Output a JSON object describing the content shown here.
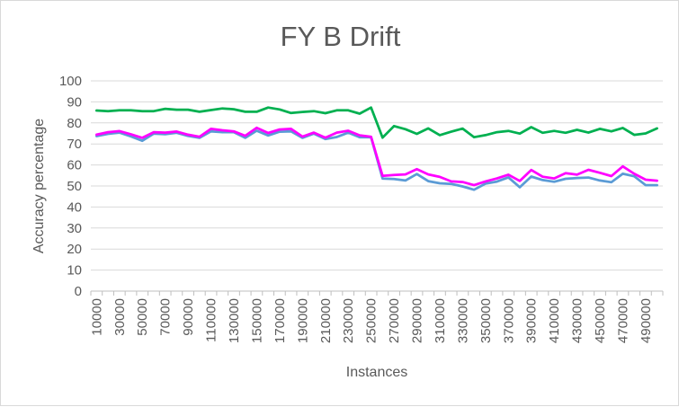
{
  "chart_data": {
    "type": "line",
    "title": "FY B Drift",
    "xlabel": "Instances",
    "ylabel": "Accuracy percentage",
    "ylim": [
      0,
      100
    ],
    "yticks": [
      0,
      10,
      20,
      30,
      40,
      50,
      60,
      70,
      80,
      90,
      100
    ],
    "xtick_labels": [
      "10000",
      "30000",
      "50000",
      "70000",
      "90000",
      "110000",
      "130000",
      "150000",
      "170000",
      "190000",
      "210000",
      "230000",
      "250000",
      "270000",
      "290000",
      "310000",
      "330000",
      "350000",
      "370000",
      "390000",
      "410000",
      "430000",
      "450000",
      "470000",
      "490000"
    ],
    "x": [
      10000,
      20000,
      30000,
      40000,
      50000,
      60000,
      70000,
      80000,
      90000,
      100000,
      110000,
      120000,
      130000,
      140000,
      150000,
      160000,
      170000,
      180000,
      190000,
      200000,
      210000,
      220000,
      230000,
      240000,
      250000,
      260000,
      270000,
      280000,
      290000,
      300000,
      310000,
      320000,
      330000,
      340000,
      350000,
      360000,
      370000,
      380000,
      390000,
      400000,
      410000,
      420000,
      430000,
      440000,
      450000,
      460000,
      470000,
      480000,
      490000,
      500000
    ],
    "grid": true,
    "legend": "none",
    "series": [
      {
        "color": "#00b050",
        "values": [
          85.9,
          85.6,
          86.0,
          86.0,
          85.6,
          85.6,
          86.7,
          86.3,
          86.3,
          85.3,
          86.1,
          86.9,
          86.5,
          85.3,
          85.3,
          87.3,
          86.4,
          84.7,
          85.2,
          85.6,
          84.6,
          86.0,
          86.0,
          84.4,
          87.3,
          73.0,
          78.5,
          77.0,
          74.8,
          77.4,
          74.2,
          75.8,
          77.3,
          73.2,
          74.2,
          75.6,
          76.2,
          74.9,
          78.0,
          75.3,
          76.2,
          75.3,
          76.7,
          75.4,
          77.2,
          76.0,
          77.6,
          74.3,
          75.0,
          77.4
        ]
      },
      {
        "color": "#5b9bd5",
        "values": [
          73.7,
          74.8,
          75.4,
          73.6,
          71.5,
          74.9,
          74.6,
          75.3,
          73.8,
          72.9,
          76.0,
          75.6,
          75.6,
          72.9,
          76.3,
          74.0,
          75.8,
          76.0,
          72.9,
          74.9,
          72.3,
          73.3,
          75.4,
          73.2,
          73.2,
          53.5,
          53.3,
          52.6,
          55.7,
          52.3,
          51.3,
          51.0,
          49.8,
          48.2,
          51.1,
          52.1,
          54.1,
          49.4,
          54.5,
          52.8,
          52.0,
          53.4,
          53.8,
          54.0,
          52.6,
          51.8,
          55.8,
          54.6,
          50.4,
          50.4
        ]
      },
      {
        "color": "#ff00ff",
        "values": [
          74.4,
          75.6,
          76.1,
          74.6,
          72.9,
          75.6,
          75.4,
          75.9,
          74.4,
          73.4,
          77.2,
          76.5,
          76.0,
          73.9,
          77.7,
          75.2,
          76.9,
          77.2,
          73.5,
          75.4,
          73.0,
          75.4,
          76.3,
          74.1,
          73.4,
          54.8,
          55.2,
          55.5,
          58.0,
          55.5,
          54.3,
          52.2,
          51.9,
          50.4,
          52.2,
          53.6,
          55.4,
          52.4,
          57.6,
          54.4,
          53.6,
          56.1,
          55.4,
          57.7,
          56.3,
          54.7,
          59.3,
          55.8,
          53.0,
          52.5
        ]
      }
    ]
  }
}
